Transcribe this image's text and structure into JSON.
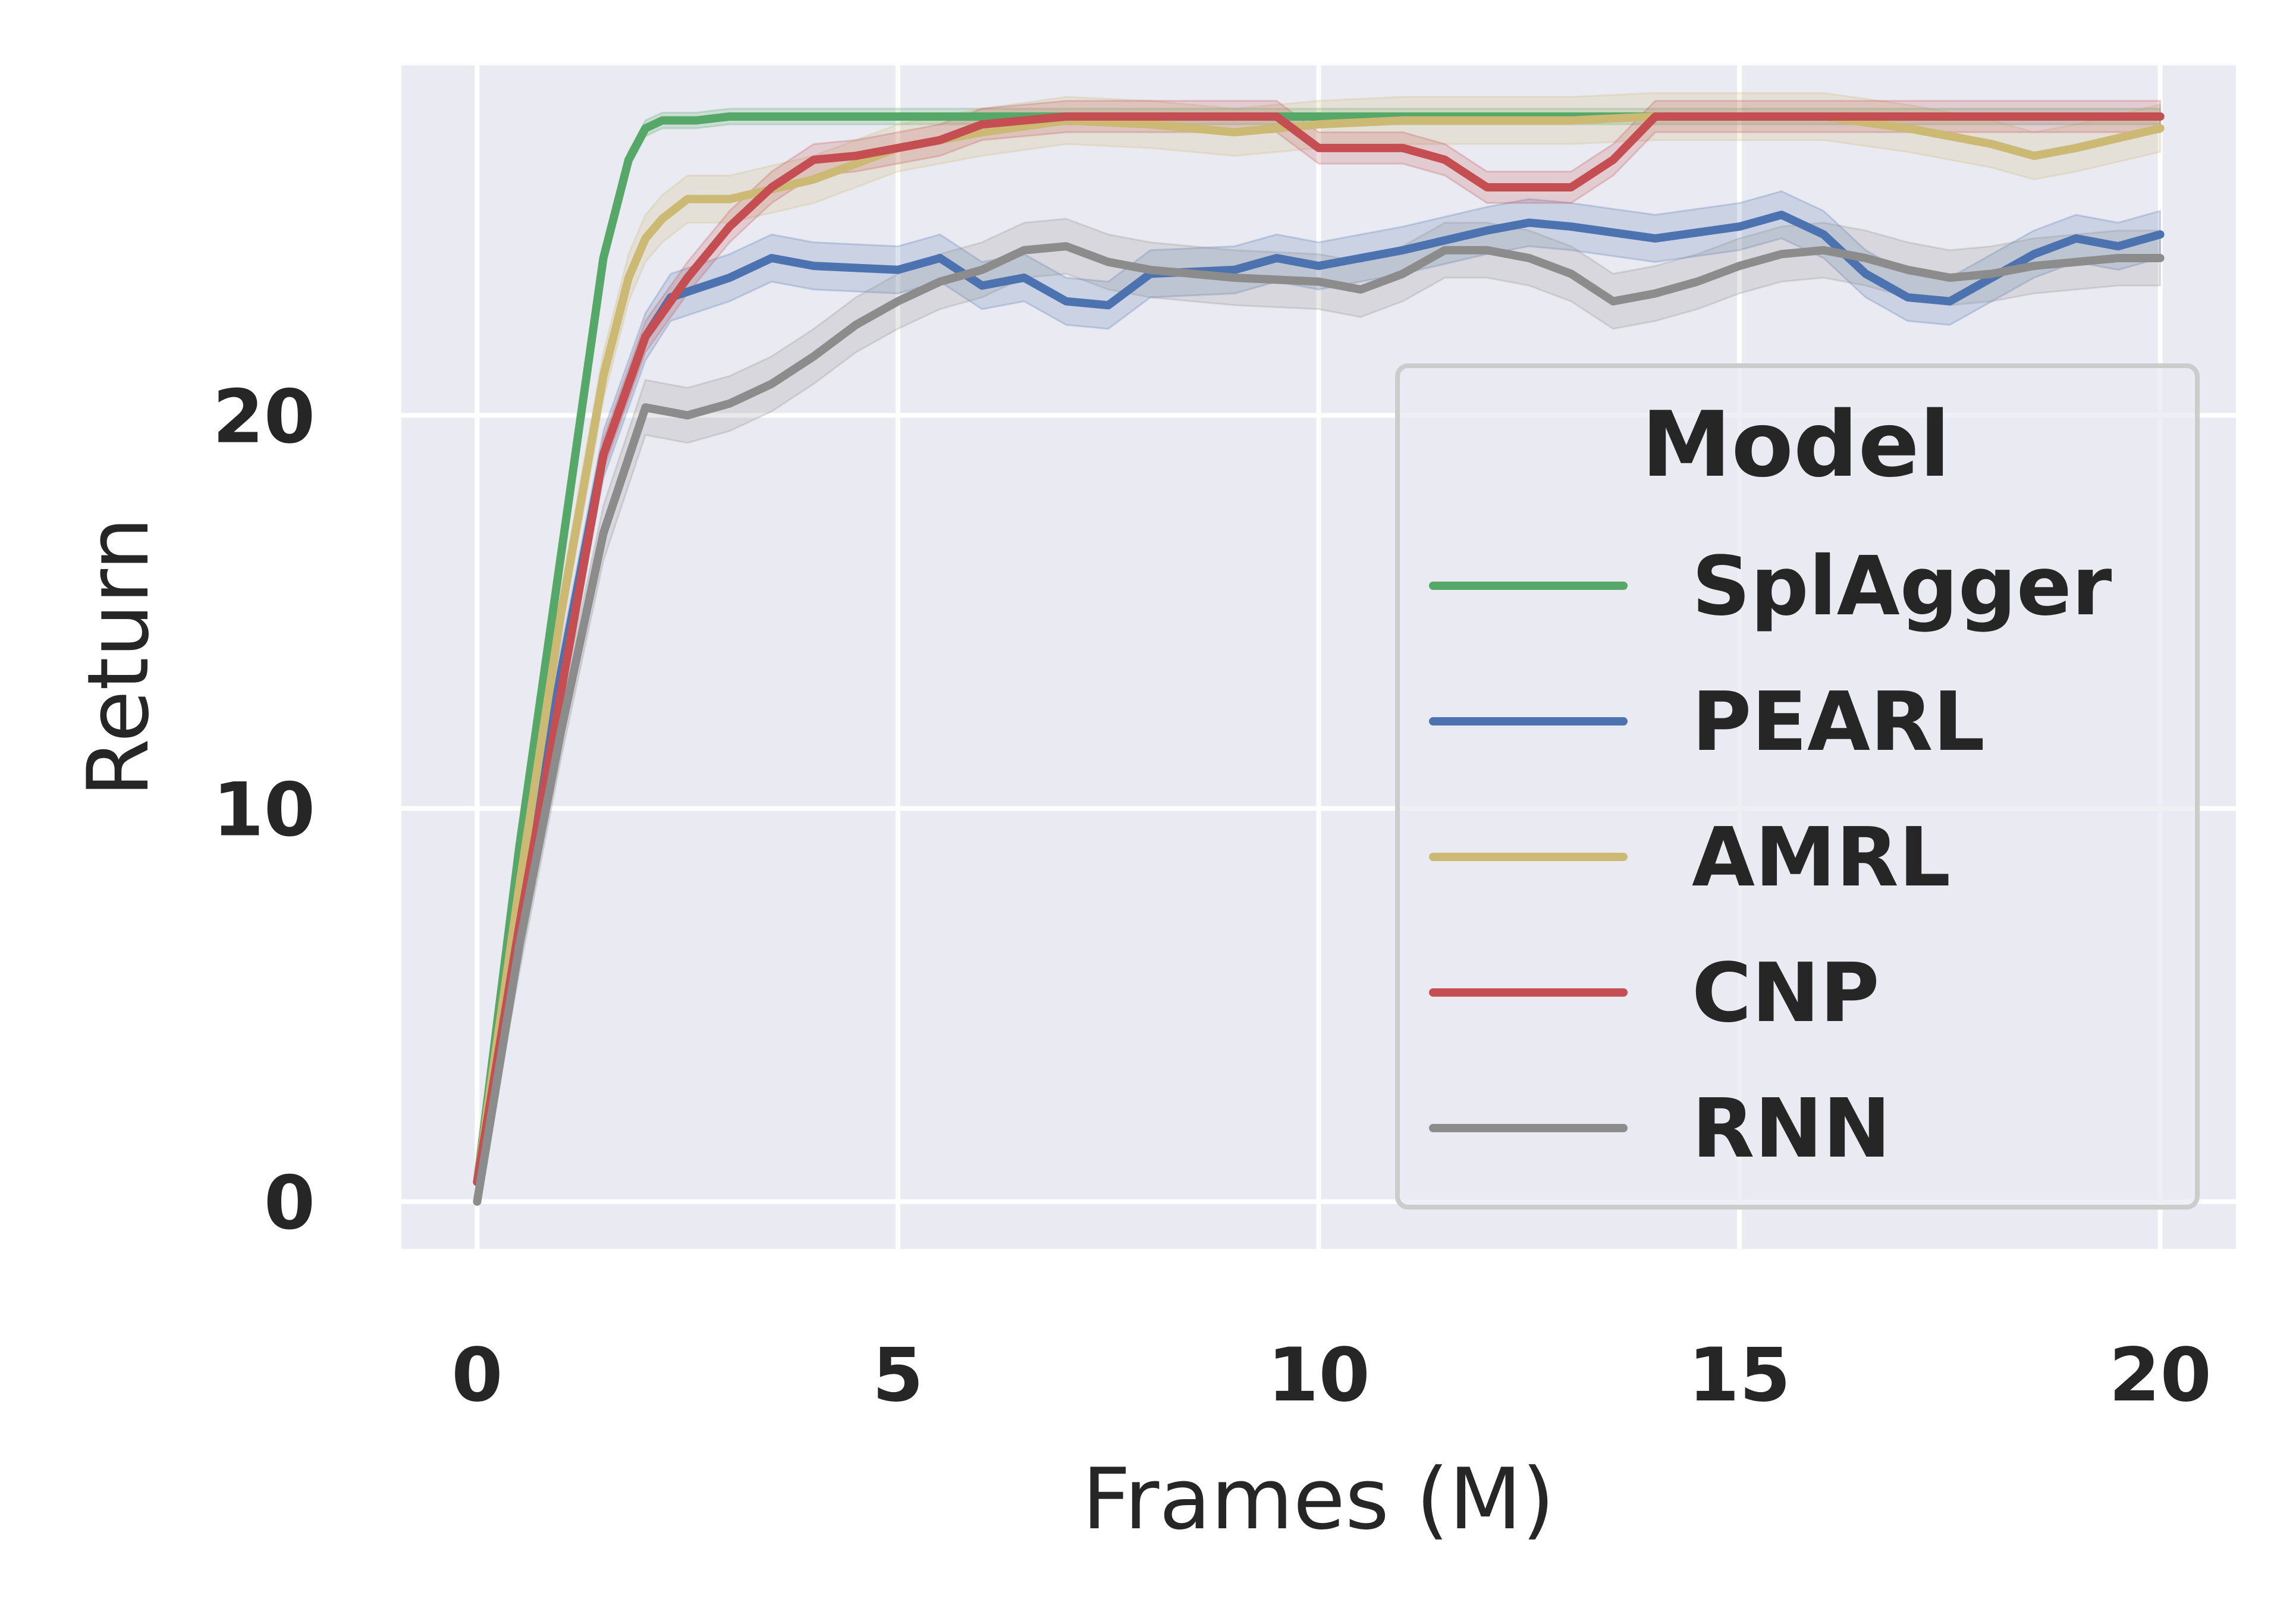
{
  "chart_data": {
    "type": "line",
    "xlabel": "Frames (M)",
    "ylabel": "Return",
    "xlim": [
      -0.9,
      20.9
    ],
    "ylim": [
      -1.2,
      28.9
    ],
    "xticks": [
      0,
      5,
      10,
      15,
      20
    ],
    "xtick_labels": [
      "0",
      "5",
      "10",
      "15",
      "20"
    ],
    "yticks": [
      0,
      10,
      20
    ],
    "ytick_labels": [
      "0",
      "10",
      "20"
    ],
    "grid": true,
    "background": "#eaeaf2",
    "legend": {
      "title": "Model",
      "placement": "center-right"
    },
    "series": [
      {
        "name": "SplAgger",
        "color": "#55a868",
        "x": [
          0,
          0.5,
          1.0,
          1.5,
          1.8,
          2.0,
          2.2,
          2.6,
          3.0,
          4.0,
          5.0,
          8.0,
          12.0,
          16.0,
          20.0
        ],
        "y": [
          0.5,
          9.0,
          16.5,
          24.0,
          26.5,
          27.3,
          27.5,
          27.5,
          27.6,
          27.6,
          27.6,
          27.6,
          27.6,
          27.6,
          27.6
        ],
        "band": 0.2
      },
      {
        "name": "PEARL",
        "color": "#4c72b0",
        "x": [
          0,
          0.5,
          1.0,
          1.5,
          2.0,
          2.3,
          3.0,
          3.5,
          4.0,
          5.0,
          5.5,
          6.0,
          6.5,
          7.0,
          7.5,
          8.0,
          9.0,
          9.5,
          10.0,
          11.0,
          12.0,
          12.5,
          13.0,
          14.0,
          15.0,
          15.5,
          16.0,
          16.5,
          17.0,
          17.5,
          18.0,
          18.5,
          19.0,
          19.5,
          20.0
        ],
        "y": [
          0.5,
          7.5,
          13.5,
          19.0,
          22.0,
          23.0,
          23.5,
          24.0,
          23.8,
          23.7,
          24.0,
          23.3,
          23.5,
          22.9,
          22.8,
          23.6,
          23.7,
          24.0,
          23.8,
          24.2,
          24.7,
          24.9,
          24.8,
          24.5,
          24.8,
          25.1,
          24.6,
          23.6,
          23.0,
          22.9,
          23.5,
          24.1,
          24.5,
          24.3,
          24.6
        ],
        "band": 0.6
      },
      {
        "name": "AMRL",
        "color": "#ccb974",
        "x": [
          0,
          0.5,
          1.0,
          1.5,
          1.8,
          2.0,
          2.2,
          2.5,
          3.0,
          4.0,
          5.0,
          6.0,
          7.0,
          8.0,
          9.0,
          10.0,
          11.0,
          12.0,
          13.0,
          14.0,
          16.0,
          17.0,
          18.0,
          18.5,
          19.0,
          20.0
        ],
        "y": [
          0.5,
          8.0,
          15.0,
          21.0,
          23.5,
          24.5,
          25.0,
          25.5,
          25.5,
          26.0,
          26.8,
          27.2,
          27.5,
          27.4,
          27.2,
          27.4,
          27.5,
          27.5,
          27.5,
          27.6,
          27.6,
          27.3,
          26.9,
          26.6,
          26.8,
          27.3
        ],
        "band": 0.6
      },
      {
        "name": "CNP",
        "color": "#c44e52",
        "x": [
          0,
          0.5,
          1.0,
          1.5,
          2.0,
          2.5,
          3.0,
          3.5,
          4.0,
          4.5,
          5.0,
          5.5,
          6.0,
          7.0,
          8.0,
          9.0,
          9.5,
          10.0,
          11.0,
          11.5,
          12.0,
          13.0,
          13.5,
          14.0,
          15.0,
          20.0
        ],
        "y": [
          0.5,
          7.0,
          13.0,
          19.0,
          22.0,
          23.5,
          24.8,
          25.8,
          26.5,
          26.6,
          26.8,
          27.0,
          27.4,
          27.6,
          27.6,
          27.6,
          27.6,
          26.8,
          26.8,
          26.5,
          25.8,
          25.8,
          26.5,
          27.6,
          27.6,
          27.6
        ],
        "band": 0.4
      },
      {
        "name": "RNN",
        "color": "#8c8c8c",
        "x": [
          0,
          0.5,
          1.0,
          1.5,
          2.0,
          2.5,
          3.0,
          3.5,
          4.0,
          4.5,
          5.0,
          5.5,
          6.0,
          6.5,
          7.0,
          7.5,
          8.0,
          9.0,
          10.0,
          10.5,
          11.0,
          11.5,
          12.0,
          12.5,
          13.0,
          13.5,
          14.0,
          14.5,
          15.0,
          15.5,
          16.0,
          16.5,
          17.0,
          17.5,
          18.0,
          18.5,
          19.0,
          19.5,
          20.0
        ],
        "y": [
          0.0,
          6.5,
          12.0,
          17.0,
          20.2,
          20.0,
          20.3,
          20.8,
          21.5,
          22.3,
          22.9,
          23.4,
          23.7,
          24.2,
          24.3,
          23.9,
          23.7,
          23.5,
          23.4,
          23.2,
          23.6,
          24.2,
          24.2,
          24.0,
          23.6,
          22.9,
          23.1,
          23.4,
          23.8,
          24.1,
          24.2,
          24.0,
          23.7,
          23.5,
          23.6,
          23.8,
          23.9,
          24.0,
          24.0
        ],
        "band": 0.7
      }
    ]
  }
}
